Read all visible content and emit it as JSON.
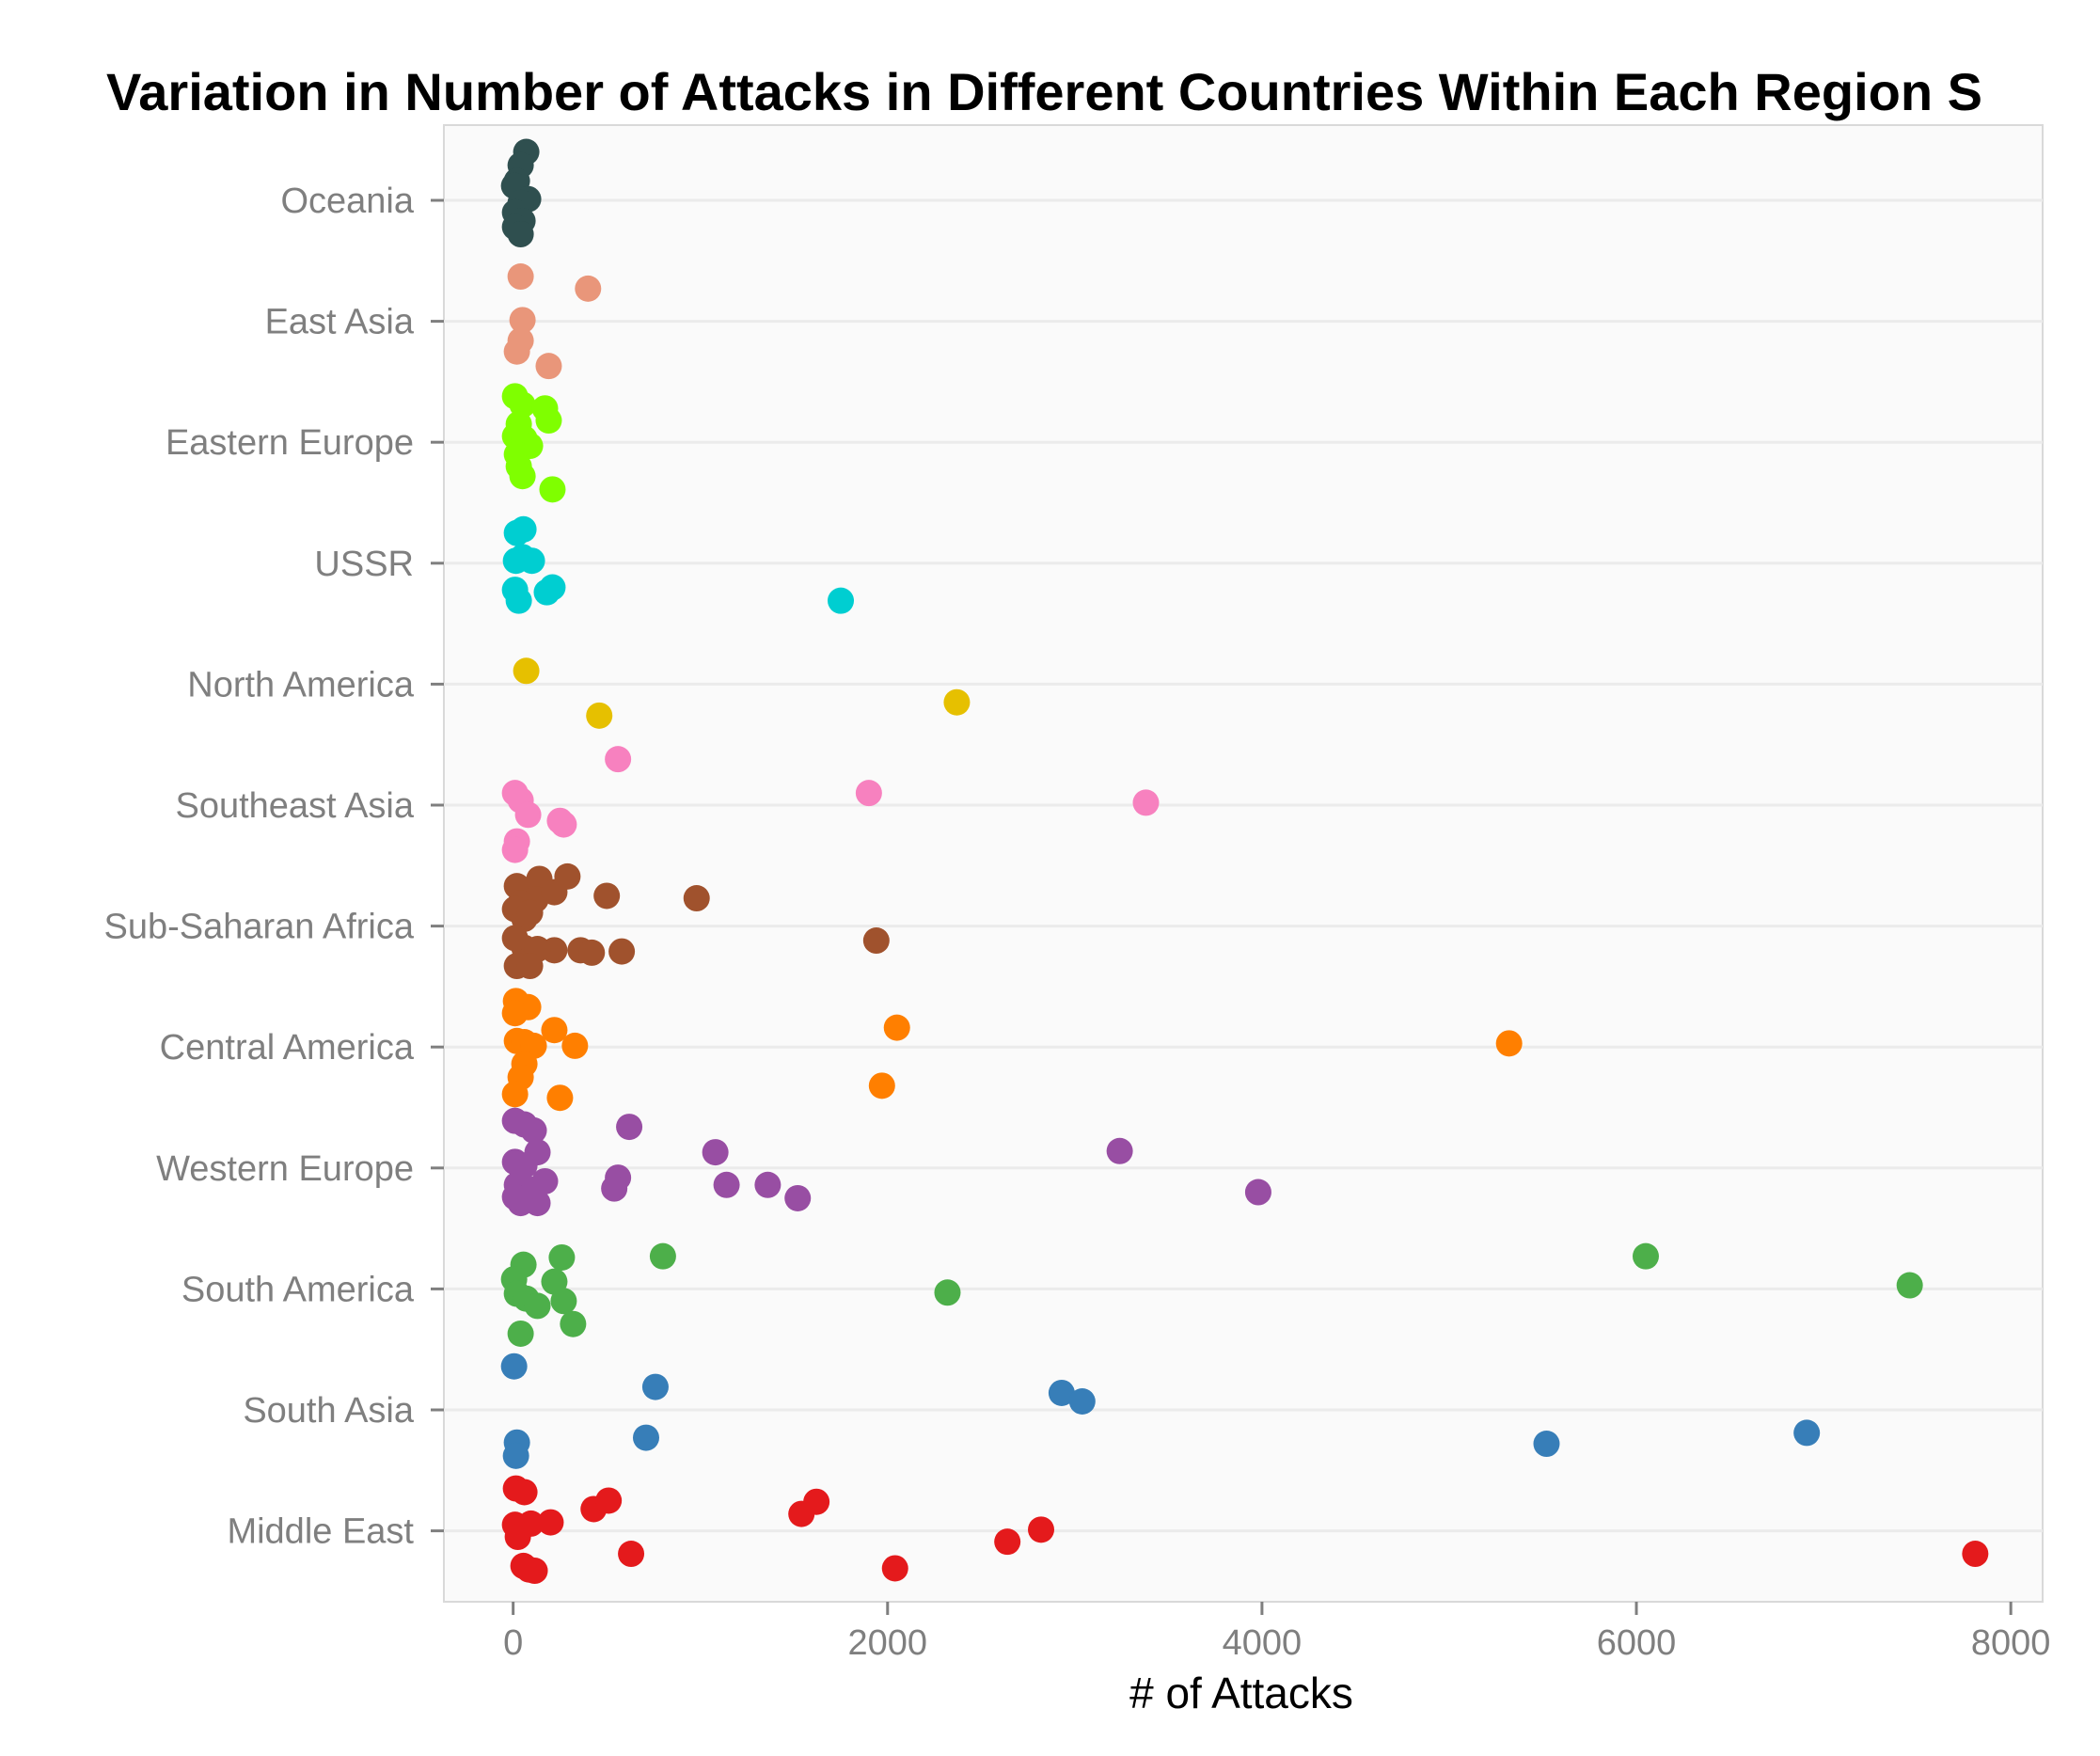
{
  "chart_data": {
    "type": "scatter",
    "title": "Variation in Number of Attacks in Different Countries Within Each Region S",
    "xlabel": "# of Attacks",
    "ylabel": "",
    "xlim": [
      -370,
      8170
    ],
    "xticks": [
      0,
      2000,
      4000,
      6000,
      8000
    ],
    "xtick_labels": [
      "0",
      "2000",
      "4000",
      "6000",
      "8000"
    ],
    "grid": true,
    "legend": "none",
    "categories": [
      "Middle East",
      "South Asia",
      "South America",
      "Western Europe",
      "Central America",
      "Sub-Saharan Africa",
      "Southeast Asia",
      "North America",
      "USSR",
      "Eastern Europe",
      "East Asia",
      "Oceania"
    ],
    "series": [
      {
        "color": "#e41a1c",
        "points": [
          [
            15,
            0.35
          ],
          [
            60,
            0.32
          ],
          [
            10,
            0.05
          ],
          [
            35,
            0.03
          ],
          [
            95,
            0.06
          ],
          [
            200,
            0.07
          ],
          [
            430,
            0.18
          ],
          [
            510,
            0.25
          ],
          [
            1540,
            0.14
          ],
          [
            1620,
            0.24
          ],
          [
            630,
            -0.19
          ],
          [
            2040,
            -0.31
          ],
          [
            2640,
            -0.09
          ],
          [
            2820,
            0.01
          ],
          [
            7810,
            -0.19
          ],
          [
            55,
            -0.29
          ],
          [
            85,
            -0.32
          ],
          [
            115,
            -0.33
          ],
          [
            25,
            -0.05
          ]
        ]
      },
      {
        "color": "#377eb8",
        "points": [
          [
            5,
            0.36
          ],
          [
            760,
            0.19
          ],
          [
            2930,
            0.14
          ],
          [
            3040,
            0.07
          ],
          [
            710,
            -0.23
          ],
          [
            5520,
            -0.28
          ],
          [
            6910,
            -0.19
          ],
          [
            20,
            -0.27
          ],
          [
            15,
            -0.38
          ]
        ]
      },
      {
        "color": "#4daf4a",
        "points": [
          [
            55,
            0.2
          ],
          [
            260,
            0.26
          ],
          [
            800,
            0.27
          ],
          [
            6050,
            0.27
          ],
          [
            7460,
            0.03
          ],
          [
            5,
            0.08
          ],
          [
            220,
            0.06
          ],
          [
            20,
            -0.04
          ],
          [
            70,
            -0.08
          ],
          [
            130,
            -0.14
          ],
          [
            270,
            -0.1
          ],
          [
            320,
            -0.29
          ],
          [
            40,
            -0.37
          ],
          [
            2320,
            -0.03
          ]
        ]
      },
      {
        "color": "#984ea3",
        "points": [
          [
            10,
            0.39
          ],
          [
            60,
            0.36
          ],
          [
            110,
            0.31
          ],
          [
            620,
            0.34
          ],
          [
            130,
            0.13
          ],
          [
            1080,
            0.13
          ],
          [
            3240,
            0.14
          ],
          [
            10,
            0.05
          ],
          [
            60,
            0.02
          ],
          [
            170,
            -0.11
          ],
          [
            560,
            -0.08
          ],
          [
            540,
            -0.17
          ],
          [
            1140,
            -0.14
          ],
          [
            1360,
            -0.14
          ],
          [
            1520,
            -0.25
          ],
          [
            3980,
            -0.2
          ],
          [
            20,
            -0.14
          ],
          [
            100,
            -0.18
          ],
          [
            130,
            -0.29
          ],
          [
            40,
            -0.29
          ],
          [
            10,
            -0.24
          ]
        ]
      },
      {
        "color": "#ff7f00",
        "points": [
          [
            15,
            0.38
          ],
          [
            80,
            0.33
          ],
          [
            10,
            0.28
          ],
          [
            220,
            0.14
          ],
          [
            2050,
            0.16
          ],
          [
            5320,
            0.03
          ],
          [
            20,
            0.05
          ],
          [
            60,
            0.04
          ],
          [
            110,
            0.01
          ],
          [
            330,
            0.01
          ],
          [
            60,
            -0.14
          ],
          [
            40,
            -0.25
          ],
          [
            1970,
            -0.32
          ],
          [
            250,
            -0.42
          ],
          [
            10,
            -0.39
          ]
        ]
      },
      {
        "color": "#a0522d",
        "points": [
          [
            20,
            0.33
          ],
          [
            140,
            0.39
          ],
          [
            290,
            0.41
          ],
          [
            500,
            0.25
          ],
          [
            980,
            0.23
          ],
          [
            120,
            0.22
          ],
          [
            40,
            0.19
          ],
          [
            220,
            0.28
          ],
          [
            10,
            0.14
          ],
          [
            60,
            0.06
          ],
          [
            90,
            0.11
          ],
          [
            1940,
            -0.12
          ],
          [
            580,
            -0.21
          ],
          [
            360,
            -0.2
          ],
          [
            420,
            -0.22
          ],
          [
            220,
            -0.2
          ],
          [
            60,
            -0.18
          ],
          [
            130,
            -0.19
          ],
          [
            20,
            -0.33
          ],
          [
            90,
            -0.33
          ],
          [
            10,
            -0.1
          ]
        ]
      },
      {
        "color": "#f781bf",
        "points": [
          [
            560,
            0.38
          ],
          [
            1900,
            0.1
          ],
          [
            3380,
            0.02
          ],
          [
            10,
            0.1
          ],
          [
            40,
            0.04
          ],
          [
            80,
            -0.08
          ],
          [
            270,
            -0.16
          ],
          [
            20,
            -0.3
          ],
          [
            10,
            -0.37
          ],
          [
            250,
            -0.13
          ]
        ]
      },
      {
        "color": "#e6c000",
        "points": [
          [
            70,
            0.11
          ],
          [
            2370,
            -0.15
          ],
          [
            460,
            -0.26
          ]
        ]
      },
      {
        "color": "#00ced1",
        "points": [
          [
            20,
            0.25
          ],
          [
            55,
            0.28
          ],
          [
            50,
            0.05
          ],
          [
            100,
            0.02
          ],
          [
            15,
            0.02
          ],
          [
            1750,
            -0.31
          ],
          [
            210,
            -0.2
          ],
          [
            180,
            -0.24
          ],
          [
            10,
            -0.22
          ],
          [
            30,
            -0.31
          ]
        ]
      },
      {
        "color": "#7fff00",
        "points": [
          [
            10,
            0.38
          ],
          [
            50,
            0.31
          ],
          [
            170,
            0.28
          ],
          [
            190,
            0.18
          ],
          [
            30,
            0.15
          ],
          [
            10,
            0.05
          ],
          [
            60,
            0.03
          ],
          [
            90,
            -0.03
          ],
          [
            20,
            -0.1
          ],
          [
            30,
            -0.2
          ],
          [
            50,
            -0.28
          ],
          [
            210,
            -0.39
          ]
        ]
      },
      {
        "color": "#e9967a",
        "points": [
          [
            40,
            0.37
          ],
          [
            400,
            0.27
          ],
          [
            50,
            0.01
          ],
          [
            40,
            -0.16
          ],
          [
            20,
            -0.25
          ],
          [
            190,
            -0.37
          ]
        ]
      },
      {
        "color": "#2f4f4f",
        "points": [
          [
            70,
            0.4
          ],
          [
            40,
            0.29
          ],
          [
            20,
            0.16
          ],
          [
            5,
            0.12
          ],
          [
            80,
            0.01
          ],
          [
            40,
            -0.02
          ],
          [
            10,
            -0.1
          ],
          [
            50,
            -0.17
          ],
          [
            10,
            -0.22
          ],
          [
            40,
            -0.28
          ]
        ]
      }
    ]
  }
}
